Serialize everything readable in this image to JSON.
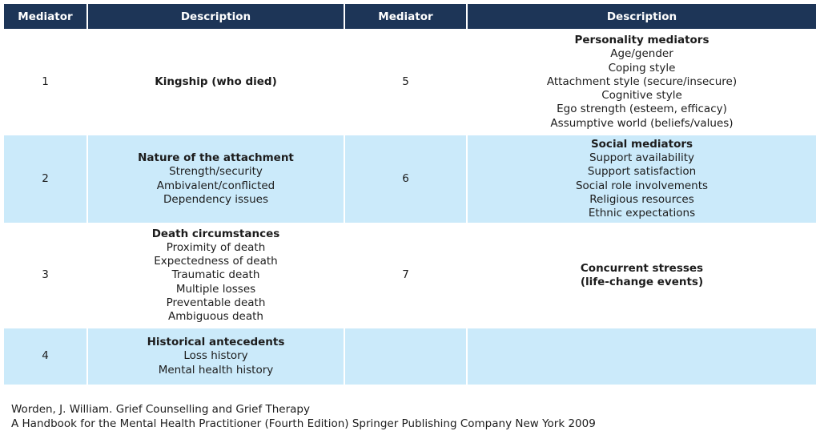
{
  "header": {
    "mediator_label_1": "Mediator",
    "description_label_1": "Description",
    "mediator_label_2": "Mediator",
    "description_label_2": "Description"
  },
  "rows": [
    {
      "left_number": "1",
      "left_title": "Kingship (who died)",
      "left_items": [],
      "right_number": "5",
      "right_title": "Personality mediators",
      "right_items": [
        "Age/gender",
        "Coping style",
        "Attachment style (secure/insecure)",
        "Cognitive style",
        "Ego strength (esteem, efficacy)",
        "Assumptive world (beliefs/values)"
      ]
    },
    {
      "left_number": "2",
      "left_title": "Nature of the attachment",
      "left_items": [
        "Strength/security",
        "Ambivalent/conflicted",
        "Dependency issues"
      ],
      "right_number": "6",
      "right_title": "Social mediators",
      "right_items": [
        "Support availability",
        "Support satisfaction",
        "Social role involvements",
        "Religious resources",
        "Ethnic expectations"
      ]
    },
    {
      "left_number": "3",
      "left_title": "Death circumstances",
      "left_items": [
        "Proximity of death",
        "Expectedness of death",
        "Traumatic death",
        "Multiple losses",
        "Preventable death",
        "Ambiguous death"
      ],
      "right_number": "7",
      "right_title_lines": [
        "Concurrent stresses",
        "(life-change events)"
      ],
      "right_items": []
    },
    {
      "left_number": "4",
      "left_title": "Historical antecedents",
      "left_items": [
        "Loss history",
        "Mental health history"
      ],
      "right_number": "",
      "right_items": []
    }
  ],
  "citation": {
    "line1": "Worden, J. William.  Grief Counselling and Grief Therapy",
    "line2": "A Handbook for the Mental Health Practitioner (Fourth Edition)  Springer Publishing Company New York 2009"
  }
}
